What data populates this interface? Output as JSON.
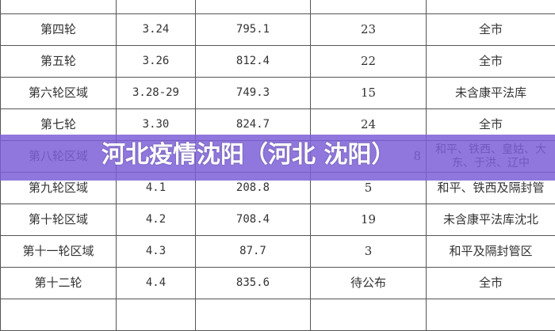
{
  "table": {
    "rows": [
      {
        "round": "",
        "date": "",
        "volume": "",
        "count": "",
        "area": ""
      },
      {
        "round": "第四轮",
        "date": "3.24",
        "volume": "795.1",
        "count": "23",
        "area": "全市"
      },
      {
        "round": "第五轮",
        "date": "3.26",
        "volume": "812.4",
        "count": "22",
        "area": "全市"
      },
      {
        "round": "第六轮区域",
        "date": "3.28-29",
        "volume": "749.3",
        "count": "15",
        "area": "未含康平法库"
      },
      {
        "round": "第七轮",
        "date": "3.30",
        "volume": "824.7",
        "count": "24",
        "area": "全市"
      },
      {
        "round": "第八轮区域",
        "date": "",
        "volume": "",
        "count": "8",
        "area": "和平、铁西、皇姑、大东、于洪、辽中"
      },
      {
        "round": "第九轮区域",
        "date": "4.1",
        "volume": "208.8",
        "count": "5",
        "area": "和平、铁西及隔封管"
      },
      {
        "round": "第十轮区域",
        "date": "4.2",
        "volume": "708.4",
        "count": "19",
        "area": "未含康平法库沈北"
      },
      {
        "round": "第十一轮区域",
        "date": "4.3",
        "volume": "87.7",
        "count": "3",
        "area": "和平及隔封管区"
      },
      {
        "round": "第十二轮",
        "date": "4.4",
        "volume": "835.6",
        "count": "待公布",
        "area": "全市"
      },
      {
        "round": "",
        "date": "",
        "volume": "",
        "count": "",
        "area": ""
      }
    ]
  },
  "banner": {
    "title": "河北疫情沈阳（河北 沈阳）",
    "color": "#7d5fd7"
  }
}
